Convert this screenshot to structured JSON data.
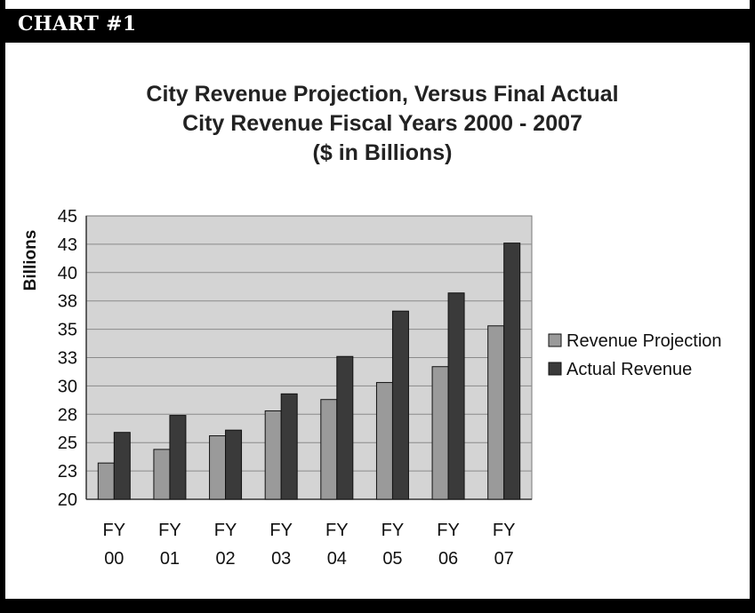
{
  "header": {
    "label": "CHART #1"
  },
  "chart_data": {
    "type": "bar",
    "title_lines": [
      "City Revenue Projection, Versus Final Actual",
      "City Revenue Fiscal Years 2000 - 2007",
      "($ in Billions)"
    ],
    "ylabel": "Billions",
    "xlabel": "",
    "ylim": [
      20,
      45
    ],
    "y_ticks": [
      20,
      22.5,
      25,
      27.5,
      30,
      32.5,
      35,
      37.5,
      40,
      42.5,
      45
    ],
    "y_tick_labels": [
      "20",
      "23",
      "25",
      "28",
      "30",
      "33",
      "35",
      "38",
      "40",
      "43",
      "45"
    ],
    "categories": [
      [
        "FY",
        "00"
      ],
      [
        "FY",
        "01"
      ],
      [
        "FY",
        "02"
      ],
      [
        "FY",
        "03"
      ],
      [
        "FY",
        "04"
      ],
      [
        "FY",
        "05"
      ],
      [
        "FY",
        "06"
      ],
      [
        "FY",
        "07"
      ]
    ],
    "series": [
      {
        "name": "Revenue Projection",
        "color": "#9a9a9a",
        "values": [
          23.2,
          24.4,
          25.6,
          27.8,
          28.8,
          30.3,
          31.7,
          35.3
        ]
      },
      {
        "name": "Actual Revenue",
        "color": "#3a3a3a",
        "values": [
          25.9,
          27.4,
          26.1,
          29.3,
          32.6,
          36.6,
          38.2,
          42.6
        ]
      }
    ],
    "grid": true,
    "plot_background": "#d4d4d4",
    "legend_position": "right"
  }
}
